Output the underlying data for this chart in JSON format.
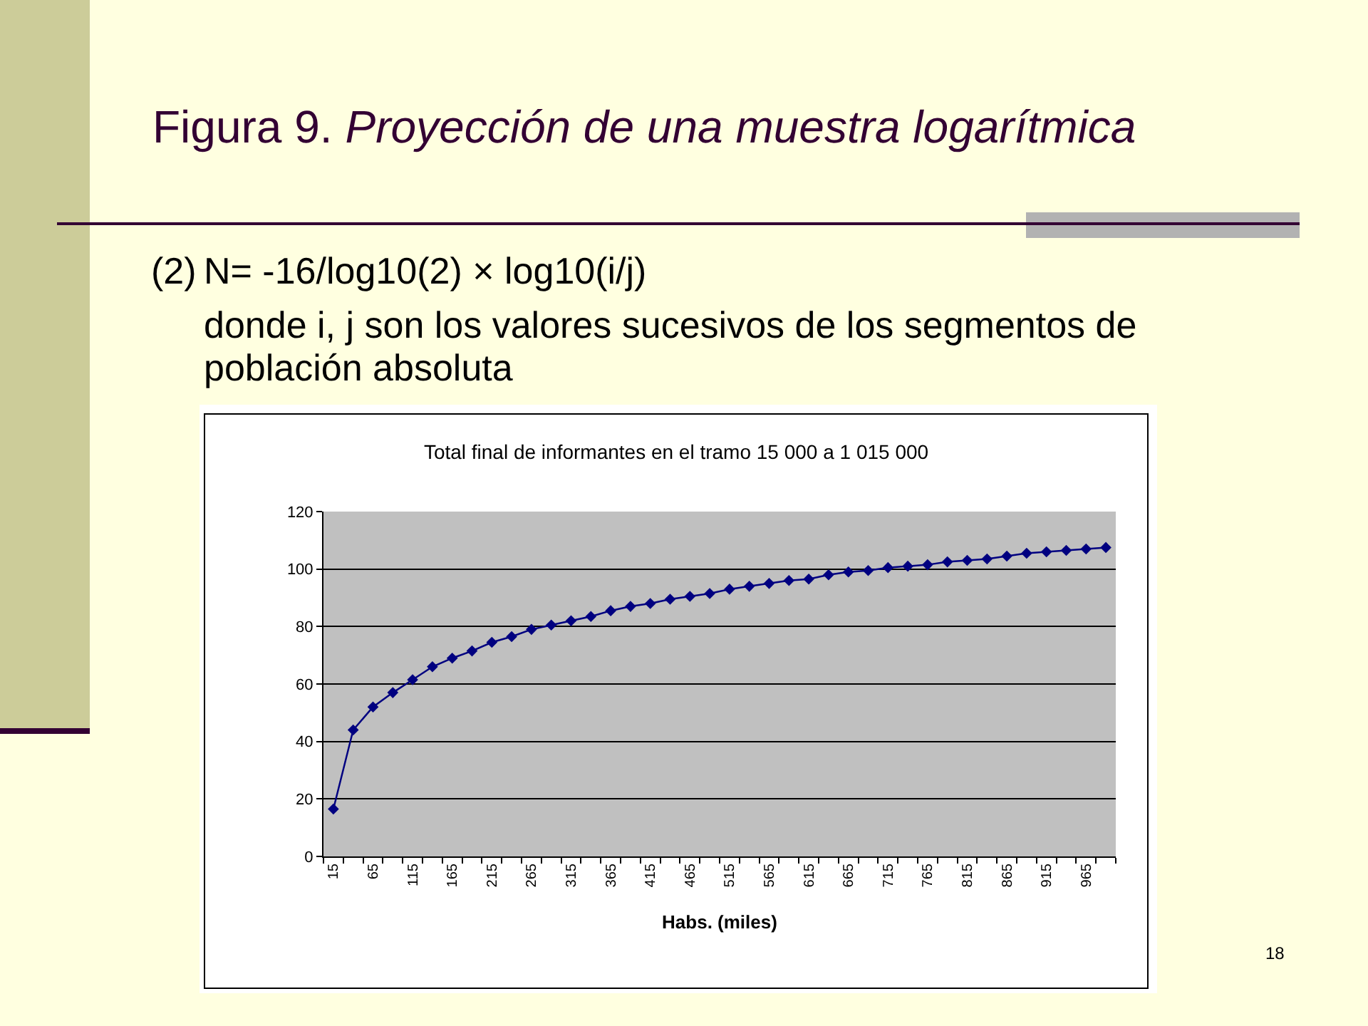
{
  "chart_data": {
    "type": "line",
    "title": "Total final de informantes en el tramo 15 000 a 1 015 000",
    "xlabel": "Habs. (miles)",
    "categories": [
      "15",
      null,
      "65",
      null,
      "115",
      null,
      "165",
      null,
      "215",
      null,
      "265",
      null,
      "315",
      null,
      "365",
      null,
      "415",
      null,
      "465",
      null,
      "515",
      null,
      "565",
      null,
      "615",
      null,
      "665",
      null,
      "715",
      null,
      "765",
      null,
      "815",
      null,
      "865",
      null,
      "915",
      null,
      "965",
      null
    ],
    "values": [
      16.5,
      44,
      52,
      57,
      61.5,
      66,
      69,
      71.5,
      74.5,
      76.5,
      79,
      80.5,
      82,
      83.5,
      85.5,
      87,
      88,
      89.5,
      90.5,
      91.5,
      93,
      94,
      95,
      96,
      96.5,
      98,
      99,
      99.5,
      100.5,
      101,
      101.5,
      102.5,
      103,
      103.5,
      104.5,
      105.5,
      106,
      106.5,
      107,
      107.5
    ],
    "color": "#000080",
    "ylim": [
      0,
      120
    ],
    "yticks": [
      0,
      20,
      40,
      60,
      80,
      100,
      120
    ],
    "grid": "y",
    "marker": "diamond",
    "line_style": "solid",
    "annotations": [
      "Figura 9.",
      "Proyección de una muestra logarítmica",
      "(2)",
      "N= -16/log10(2) × log10(i/j)",
      "donde i, j son los valores sucesivos de los segmentos de población absoluta",
      "18"
    ]
  }
}
